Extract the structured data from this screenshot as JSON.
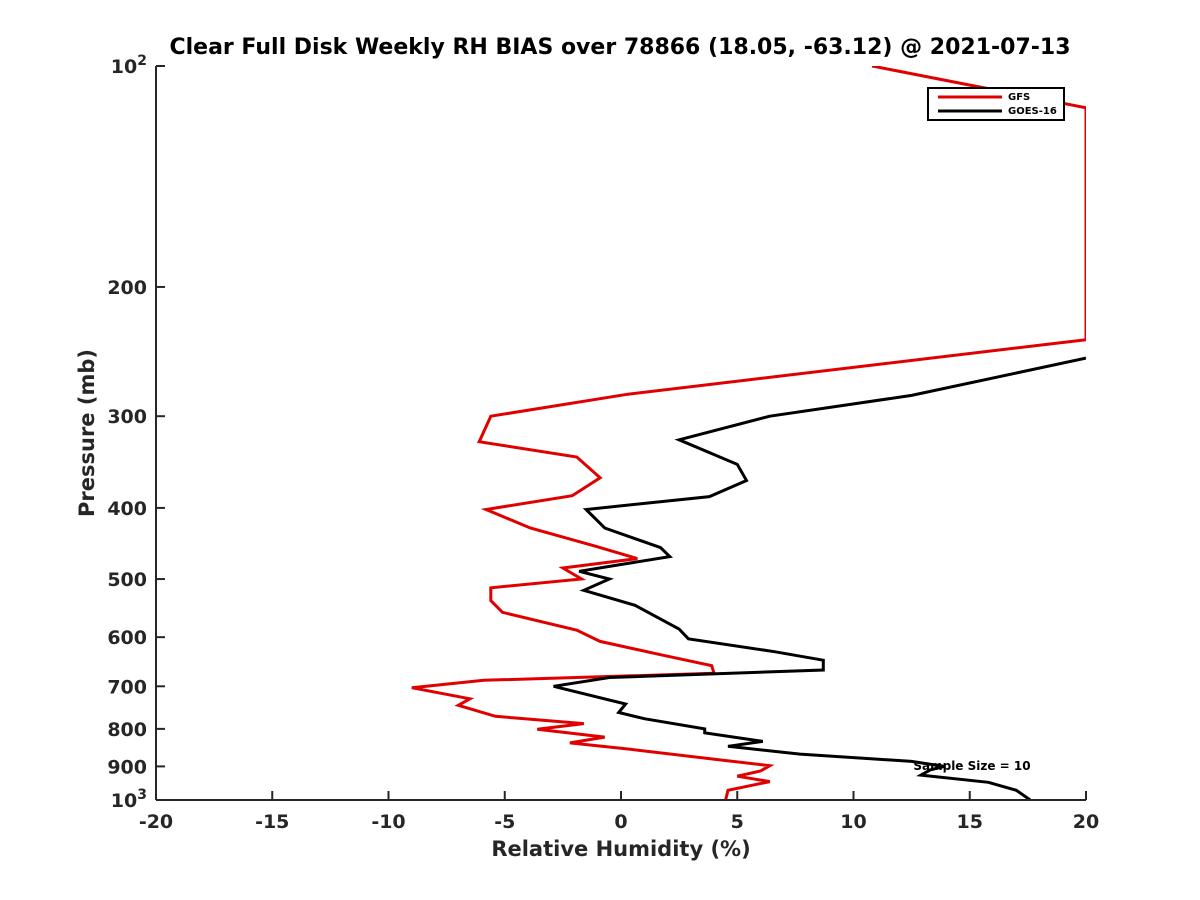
{
  "chart_data": {
    "type": "line",
    "title": "Clear Full Disk Weekly RH BIAS over 78866 (18.05, -63.12) @ 2021-07-13",
    "xlabel": "Relative Humidity (%)",
    "ylabel": "Pressure (mb)",
    "xlim": [
      -20,
      20
    ],
    "ylim": [
      100,
      1000
    ],
    "y_scale": "log",
    "y_reversed": true,
    "x_ticks": [
      -20,
      -15,
      -10,
      -5,
      0,
      5,
      10,
      15,
      20
    ],
    "x_tick_labels": [
      "-20",
      "-15",
      "-10",
      "-5",
      "0",
      "5",
      "10",
      "15",
      "20"
    ],
    "y_ticks": [
      100,
      200,
      300,
      400,
      500,
      600,
      700,
      800,
      900,
      1000
    ],
    "y_tick_labels": [
      {
        "base": "10",
        "exp": "2"
      },
      {
        "text": "200"
      },
      {
        "text": "300"
      },
      {
        "text": "400"
      },
      {
        "text": "500"
      },
      {
        "text": "600"
      },
      {
        "text": "700"
      },
      {
        "text": "800"
      },
      {
        "text": "900"
      },
      {
        "base": "10",
        "exp": "3"
      }
    ],
    "grid": false,
    "legend_position": "top-right",
    "annotation": "Sample Size = 10",
    "series": [
      {
        "name": "GFS",
        "color": "#e00000",
        "points": [
          [
            10.8,
            100
          ],
          [
            20,
            114
          ],
          [
            20,
            236
          ],
          [
            0.3,
            280
          ],
          [
            -5.6,
            300
          ],
          [
            -6.1,
            325
          ],
          [
            -1.9,
            341
          ],
          [
            -0.9,
            364
          ],
          [
            -2.1,
            385
          ],
          [
            -5.8,
            402
          ],
          [
            -3.9,
            426
          ],
          [
            -1.1,
            451
          ],
          [
            0.7,
            469
          ],
          [
            -2.5,
            483
          ],
          [
            -1.7,
            500
          ],
          [
            -5.6,
            514
          ],
          [
            -5.6,
            535
          ],
          [
            -5.1,
            555
          ],
          [
            -1.9,
            587
          ],
          [
            -0.9,
            608
          ],
          [
            1.7,
            634
          ],
          [
            3.9,
            656
          ],
          [
            4.0,
            672
          ],
          [
            -5.9,
            687
          ],
          [
            -9.0,
            703
          ],
          [
            -6.5,
            728
          ],
          [
            -7.0,
            743
          ],
          [
            -5.4,
            769
          ],
          [
            -1.6,
            787
          ],
          [
            -3.6,
            801
          ],
          [
            -0.7,
            821
          ],
          [
            -2.2,
            836
          ],
          [
            0.4,
            853
          ],
          [
            4.3,
            882
          ],
          [
            6.4,
            898
          ],
          [
            6.0,
            913
          ],
          [
            5.0,
            928
          ],
          [
            6.4,
            944
          ],
          [
            4.6,
            970
          ],
          [
            4.5,
            1000
          ]
        ]
      },
      {
        "name": "GOES-16",
        "color": "#000000",
        "points": [
          [
            20,
            250
          ],
          [
            12.5,
            281
          ],
          [
            6.4,
            300
          ],
          [
            2.5,
            323
          ],
          [
            5.0,
            349
          ],
          [
            5.4,
            367
          ],
          [
            3.8,
            386
          ],
          [
            -1.5,
            402
          ],
          [
            -0.7,
            426
          ],
          [
            1.7,
            453
          ],
          [
            2.1,
            466
          ],
          [
            -1.8,
            488
          ],
          [
            -0.5,
            500
          ],
          [
            -1.6,
            518
          ],
          [
            0.6,
            543
          ],
          [
            2.5,
            585
          ],
          [
            2.9,
            603
          ],
          [
            6.6,
            628
          ],
          [
            8.7,
            645
          ],
          [
            8.7,
            665
          ],
          [
            -0.5,
            681
          ],
          [
            -2.9,
            700
          ],
          [
            0.2,
            740
          ],
          [
            -0.1,
            760
          ],
          [
            1.0,
            775
          ],
          [
            3.6,
            800
          ],
          [
            3.6,
            810
          ],
          [
            6.1,
            832
          ],
          [
            4.6,
            845
          ],
          [
            7.7,
            866
          ],
          [
            12.5,
            886
          ],
          [
            13.9,
            900
          ],
          [
            13.3,
            910
          ],
          [
            12.9,
            925
          ],
          [
            15.8,
            946
          ],
          [
            17.0,
            970
          ],
          [
            17.6,
            1000
          ]
        ]
      }
    ]
  }
}
